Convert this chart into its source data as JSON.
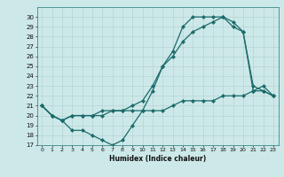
{
  "xlabel": "Humidex (Indice chaleur)",
  "bg_color": "#cde8e8",
  "line_color": "#1a6b6b",
  "grid_color": "#b0d0d0",
  "ylim": [
    17,
    31
  ],
  "xlim": [
    -0.5,
    23.5
  ],
  "yticks": [
    17,
    18,
    19,
    20,
    21,
    22,
    23,
    24,
    25,
    26,
    27,
    28,
    29,
    30
  ],
  "xticks": [
    0,
    1,
    2,
    3,
    4,
    5,
    6,
    7,
    8,
    9,
    10,
    11,
    12,
    13,
    14,
    15,
    16,
    17,
    18,
    19,
    20,
    21,
    22,
    23
  ],
  "line1_x": [
    0,
    1,
    2,
    3,
    4,
    5,
    6,
    7,
    8,
    9,
    10,
    11,
    12,
    13,
    14,
    15,
    16,
    17,
    18,
    19,
    20,
    21,
    22,
    23
  ],
  "line1_y": [
    21.0,
    20.0,
    19.5,
    18.5,
    18.5,
    18.0,
    17.5,
    17.0,
    17.5,
    19.0,
    20.5,
    22.5,
    25.0,
    26.5,
    29.0,
    30.0,
    30.0,
    30.0,
    30.0,
    29.0,
    28.5,
    22.5,
    23.0,
    22.0
  ],
  "line2_x": [
    0,
    1,
    2,
    3,
    4,
    5,
    6,
    7,
    8,
    9,
    10,
    11,
    12,
    13,
    14,
    15,
    16,
    17,
    18,
    19,
    20,
    21,
    22,
    23
  ],
  "line2_y": [
    21.0,
    20.0,
    19.5,
    20.0,
    20.0,
    20.0,
    20.5,
    20.5,
    20.5,
    21.0,
    21.5,
    23.0,
    25.0,
    26.0,
    27.5,
    28.5,
    29.0,
    29.5,
    30.0,
    29.5,
    28.5,
    23.0,
    22.5,
    22.0
  ],
  "line3_x": [
    0,
    1,
    2,
    3,
    4,
    5,
    6,
    7,
    8,
    9,
    10,
    11,
    12,
    13,
    14,
    15,
    16,
    17,
    18,
    19,
    20,
    21,
    22,
    23
  ],
  "line3_y": [
    21.0,
    20.0,
    19.5,
    20.0,
    20.0,
    20.0,
    20.0,
    20.5,
    20.5,
    20.5,
    20.5,
    20.5,
    20.5,
    21.0,
    21.5,
    21.5,
    21.5,
    21.5,
    22.0,
    22.0,
    22.0,
    22.5,
    22.5,
    22.0
  ]
}
